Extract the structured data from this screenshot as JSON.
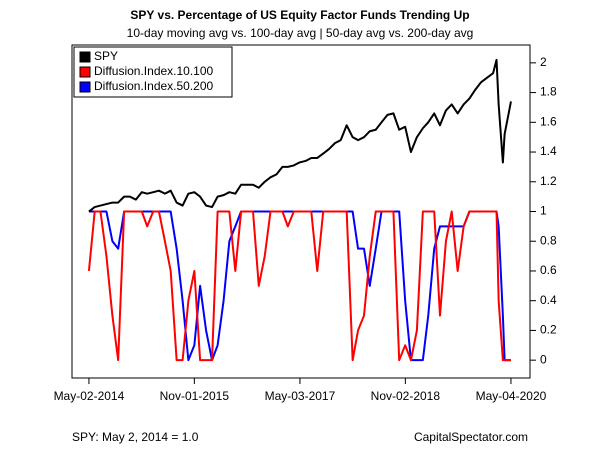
{
  "chart_data": {
    "type": "line",
    "title": "SPY vs. Percentage of US Equity Factor Funds Trending Up",
    "subtitle": "10-day moving avg vs. 100-day avg | 50-day avg vs. 200-day avg",
    "footnote": "SPY: May 2, 2014 = 1.0",
    "source": "CapitalSpectator.com",
    "x": [
      "2014-05-02",
      "2014-06-01",
      "2014-07-01",
      "2014-08-01",
      "2014-09-01",
      "2014-10-01",
      "2014-11-01",
      "2014-12-01",
      "2015-01-01",
      "2015-02-01",
      "2015-03-01",
      "2015-04-01",
      "2015-05-01",
      "2015-06-01",
      "2015-07-01",
      "2015-08-01",
      "2015-09-01",
      "2015-10-01",
      "2015-11-01",
      "2015-12-01",
      "2016-01-01",
      "2016-02-01",
      "2016-03-01",
      "2016-04-01",
      "2016-05-01",
      "2016-06-01",
      "2016-07-01",
      "2016-08-01",
      "2016-09-01",
      "2016-10-01",
      "2016-11-01",
      "2016-12-01",
      "2017-01-01",
      "2017-02-01",
      "2017-03-01",
      "2017-04-01",
      "2017-05-01",
      "2017-06-01",
      "2017-07-01",
      "2017-08-01",
      "2017-09-01",
      "2017-10-01",
      "2017-11-01",
      "2017-12-01",
      "2018-01-01",
      "2018-02-01",
      "2018-03-01",
      "2018-04-01",
      "2018-05-01",
      "2018-06-01",
      "2018-07-01",
      "2018-08-01",
      "2018-09-01",
      "2018-10-01",
      "2018-11-01",
      "2018-12-01",
      "2019-01-01",
      "2019-02-01",
      "2019-03-01",
      "2019-04-01",
      "2019-05-01",
      "2019-06-01",
      "2019-07-01",
      "2019-08-01",
      "2019-09-01",
      "2019-10-01",
      "2019-11-01",
      "2019-12-01",
      "2020-01-01",
      "2020-02-01",
      "2020-02-19",
      "2020-03-01",
      "2020-03-23",
      "2020-04-01",
      "2020-05-04"
    ],
    "series": [
      {
        "name": "SPY",
        "color": "#000000",
        "values": [
          1.0,
          1.03,
          1.04,
          1.05,
          1.06,
          1.06,
          1.1,
          1.1,
          1.08,
          1.13,
          1.12,
          1.13,
          1.14,
          1.12,
          1.14,
          1.06,
          1.04,
          1.12,
          1.13,
          1.1,
          1.04,
          1.03,
          1.1,
          1.11,
          1.13,
          1.12,
          1.18,
          1.18,
          1.18,
          1.16,
          1.2,
          1.23,
          1.25,
          1.3,
          1.3,
          1.31,
          1.33,
          1.34,
          1.36,
          1.36,
          1.39,
          1.42,
          1.46,
          1.48,
          1.58,
          1.5,
          1.48,
          1.5,
          1.54,
          1.55,
          1.6,
          1.65,
          1.66,
          1.55,
          1.57,
          1.4,
          1.5,
          1.56,
          1.6,
          1.66,
          1.58,
          1.68,
          1.72,
          1.66,
          1.72,
          1.76,
          1.82,
          1.87,
          1.9,
          1.93,
          2.02,
          1.72,
          1.33,
          1.52,
          1.74
        ]
      },
      {
        "name": "Diffusion.Index.10.100",
        "color": "#ff0000",
        "values": [
          0.6,
          1,
          1,
          0.7,
          0.3,
          0,
          1,
          1,
          1,
          1,
          0.9,
          1,
          1,
          0.8,
          0.6,
          0,
          0,
          0.4,
          0.6,
          0,
          0,
          0,
          1,
          1,
          1,
          0.6,
          1,
          1,
          1,
          0.5,
          0.7,
          1,
          1,
          1,
          0.9,
          1,
          1,
          1,
          1,
          0.6,
          1,
          1,
          1,
          1,
          1,
          0,
          0.2,
          0.3,
          0.7,
          1,
          1,
          1,
          1,
          0,
          0.1,
          0,
          0.2,
          1,
          1,
          1,
          0.3,
          0.8,
          1,
          0.6,
          0.9,
          1,
          1,
          1,
          1,
          1,
          1,
          0.4,
          0,
          0,
          0
        ]
      },
      {
        "name": "Diffusion.Index.50.200",
        "color": "#0000ff",
        "values": [
          1,
          1,
          1,
          1,
          0.8,
          0.75,
          1,
          1,
          1,
          1,
          1,
          1,
          1,
          1,
          1,
          0.75,
          0.4,
          0,
          0.1,
          0.5,
          0.2,
          0,
          0.1,
          0.4,
          0.8,
          0.9,
          1,
          1,
          1,
          1,
          1,
          1,
          1,
          1,
          1,
          1,
          1,
          1,
          1,
          1,
          1,
          1,
          1,
          1,
          1,
          1,
          0.75,
          0.75,
          0.5,
          0.75,
          1,
          1,
          1,
          1,
          0.4,
          0,
          0,
          0,
          0.3,
          0.75,
          0.9,
          0.9,
          0.9,
          0.9,
          0.9,
          1,
          1,
          1,
          1,
          1,
          1,
          0.9,
          0.3,
          0,
          0
        ]
      }
    ],
    "xlim": [
      "2014-02-03",
      "2020-08-11"
    ],
    "xticks": [
      {
        "value": "2014-05-02",
        "label": "May-02-2014"
      },
      {
        "value": "2015-11-01",
        "label": "Nov-01-2015"
      },
      {
        "value": "2017-05-03",
        "label": "May-03-2017"
      },
      {
        "value": "2018-11-02",
        "label": "Nov-02-2018"
      },
      {
        "value": "2020-05-04",
        "label": "May-04-2020"
      }
    ],
    "ylim": [
      -0.12,
      2.12
    ],
    "yticks": [
      0,
      0.2,
      0.4,
      0.6,
      0.8,
      1,
      1.2,
      1.4,
      1.6,
      1.8,
      2
    ],
    "legend": "top-left"
  }
}
